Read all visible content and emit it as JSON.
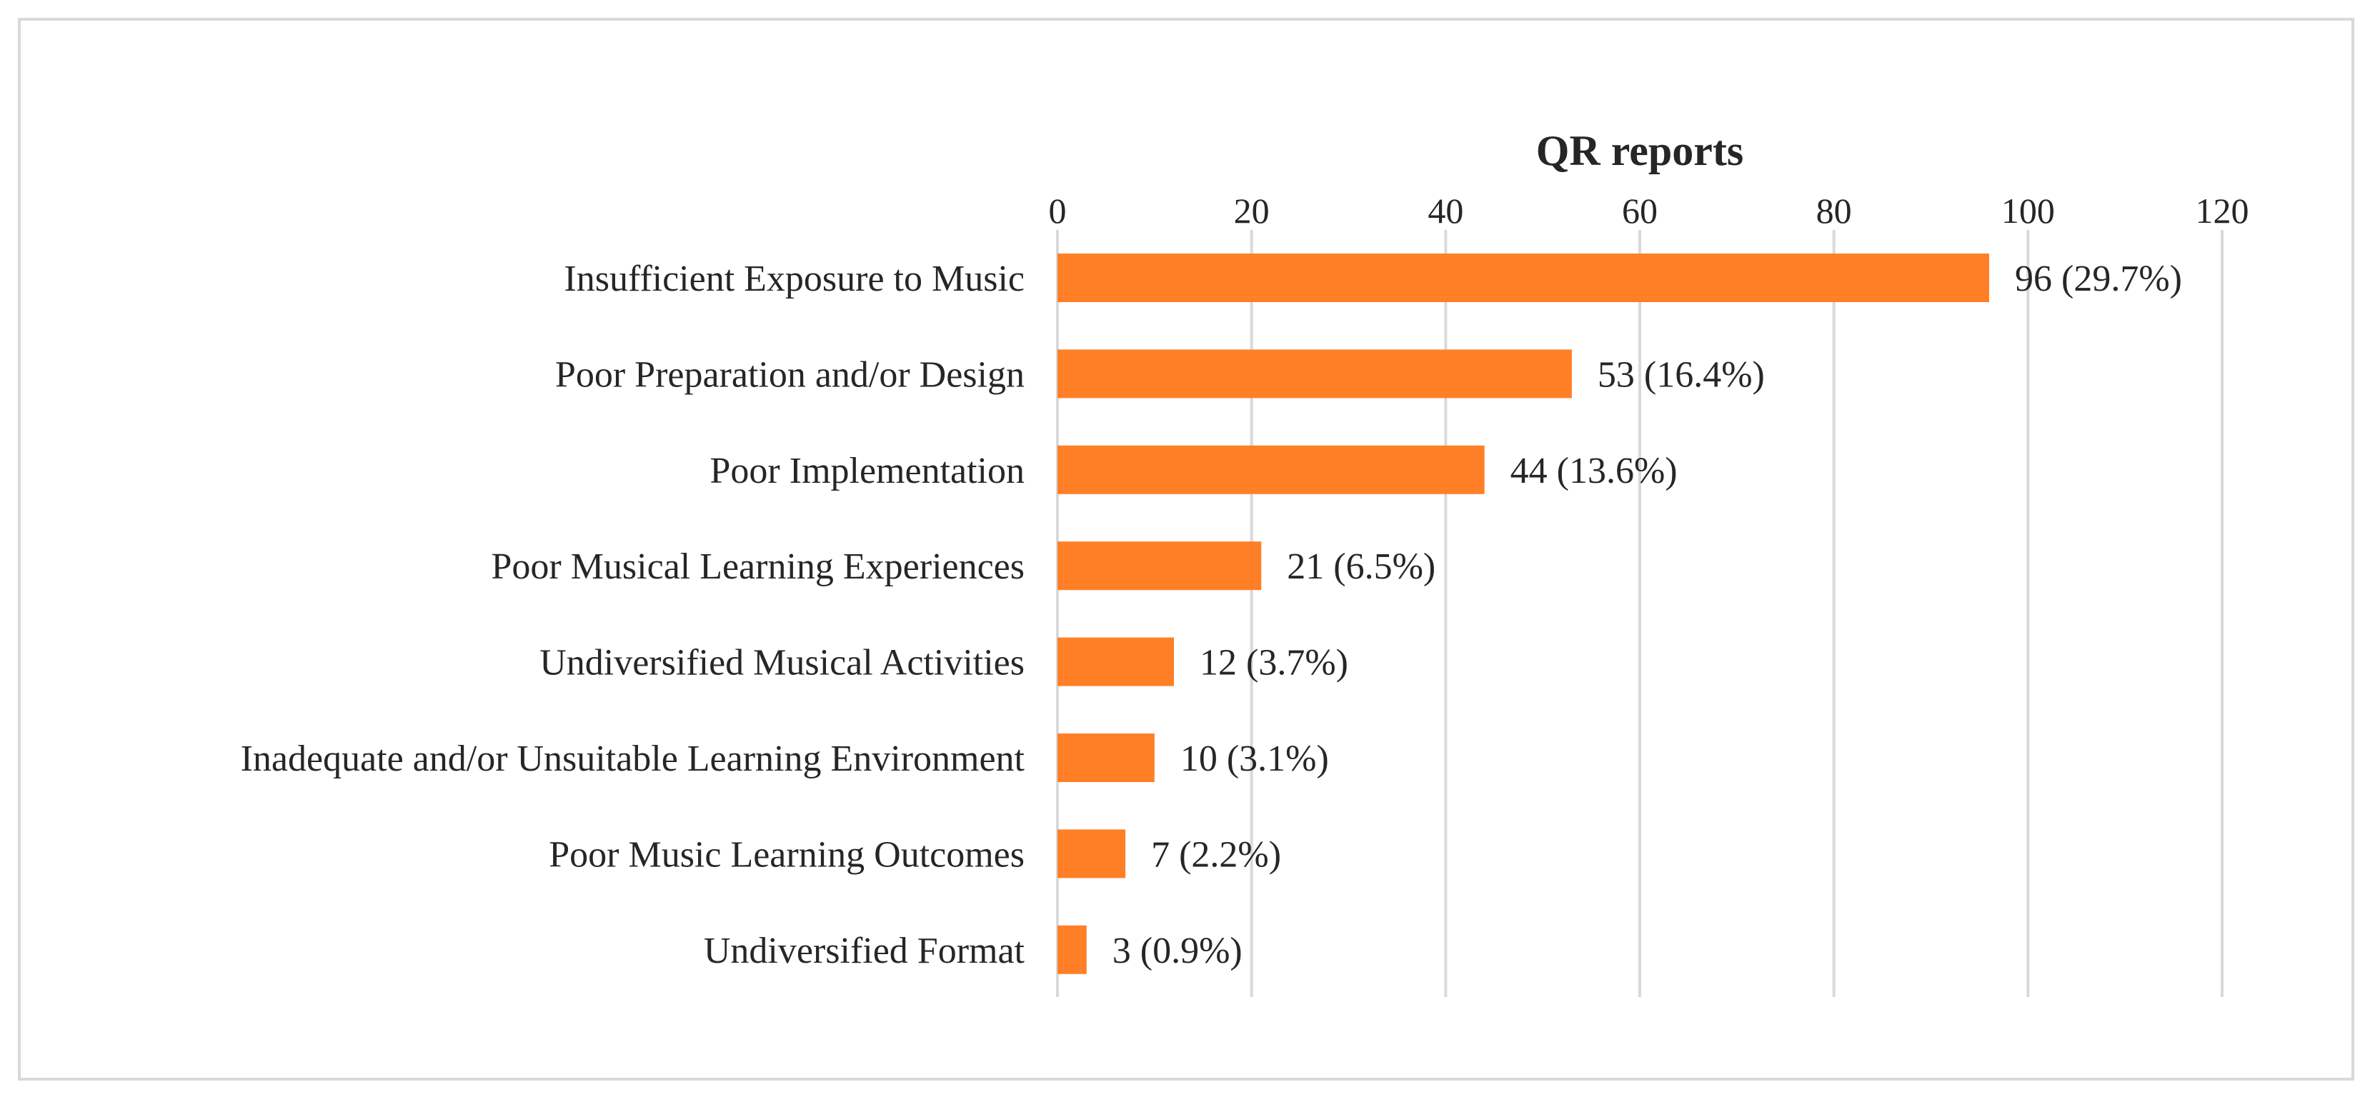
{
  "chart_data": {
    "type": "bar",
    "orientation": "horizontal",
    "title": "",
    "xlabel": "QR reports",
    "ylabel": "",
    "xlim": [
      0,
      120
    ],
    "xticks": [
      0,
      20,
      40,
      60,
      80,
      100,
      120
    ],
    "grid": true,
    "bar_color": "#ff7f27",
    "categories": [
      "Insufficient Exposure to Music",
      "Poor Preparation and/or Design",
      "Poor Implementation",
      "Poor Musical Learning Experiences",
      "Undiversified Musical Activities",
      "Inadequate and/or Unsuitable Learning Environment",
      "Poor Music Learning Outcomes",
      "Undiversified Format"
    ],
    "values": [
      96,
      53,
      44,
      21,
      12,
      10,
      7,
      3
    ],
    "data_labels": [
      "96 (29.7%)",
      "53 (16.4%)",
      "44 (13.6%)",
      "21 (6.5%)",
      "12 (3.7%)",
      "10 (3.1%)",
      "7 (2.2%)",
      "3 (0.9%)"
    ]
  }
}
